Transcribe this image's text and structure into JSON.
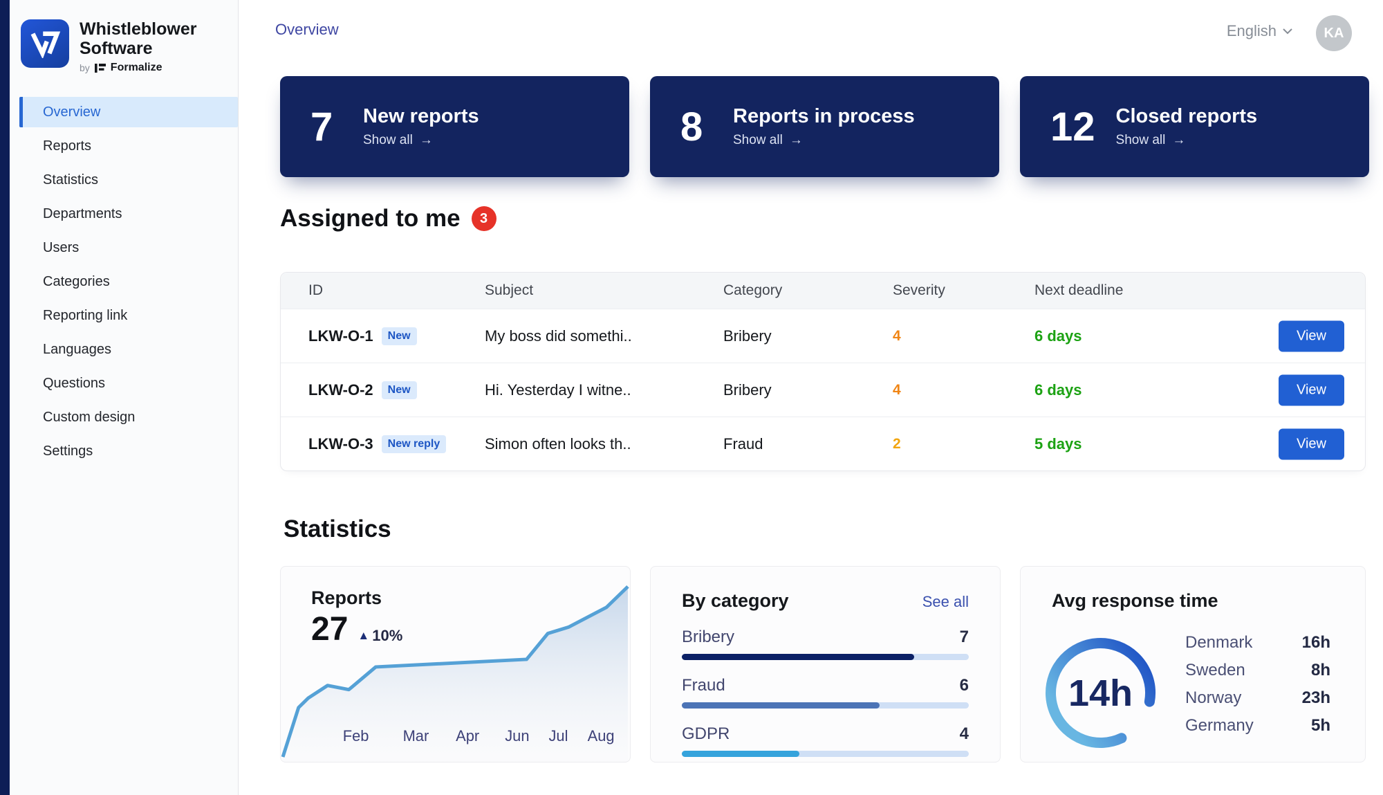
{
  "brand": {
    "title_line1": "Whistleblower",
    "title_line2": "Software",
    "byline": "by",
    "brand_name": "Formalize"
  },
  "sidebar": {
    "items": [
      {
        "label": "Overview",
        "active": true
      },
      {
        "label": "Reports",
        "active": false
      },
      {
        "label": "Statistics",
        "active": false
      },
      {
        "label": "Departments",
        "active": false
      },
      {
        "label": "Users",
        "active": false
      },
      {
        "label": "Categories",
        "active": false
      },
      {
        "label": "Reporting link",
        "active": false
      },
      {
        "label": "Languages",
        "active": false
      },
      {
        "label": "Questions",
        "active": false
      },
      {
        "label": "Custom design",
        "active": false
      },
      {
        "label": "Settings",
        "active": false
      }
    ]
  },
  "header": {
    "breadcrumb": "Overview",
    "language": "English",
    "avatar_initials": "KA"
  },
  "summary_cards": [
    {
      "count": "7",
      "label": "New reports",
      "link_label": "Show all"
    },
    {
      "count": "8",
      "label": "Reports in process",
      "link_label": "Show all"
    },
    {
      "count": "12",
      "label": "Closed reports",
      "link_label": "Show all"
    }
  ],
  "assigned": {
    "title": "Assigned to me",
    "badge_count": "3",
    "columns": [
      "ID",
      "Subject",
      "Category",
      "Severity",
      "Next deadline"
    ],
    "action_label": "View",
    "deadline_color": "#1ca213",
    "rows": [
      {
        "id": "LKW-O-1",
        "tag": "New",
        "subject": "My boss did somethi..",
        "category": "Bribery",
        "severity": "4",
        "severity_color": "#f08514",
        "deadline": "6 days"
      },
      {
        "id": "LKW-O-2",
        "tag": "New",
        "subject": "Hi. Yesterday I witne..",
        "category": "Bribery",
        "severity": "4",
        "severity_color": "#f08514",
        "deadline": "6 days"
      },
      {
        "id": "LKW-O-3",
        "tag": "New reply",
        "subject": "Simon often looks th..",
        "category": "Fraud",
        "severity": "2",
        "severity_color": "#f2a50f",
        "deadline": "5 days"
      }
    ]
  },
  "statistics": {
    "heading": "Statistics"
  },
  "chart_data": [
    {
      "type": "area",
      "title": "Reports",
      "total": "27",
      "delta": "10%",
      "x_labels": [
        "Feb",
        "Mar",
        "Apr",
        "Jun",
        "Jul",
        "Aug"
      ],
      "x_label_pos_pct": [
        21.5,
        38.7,
        53.5,
        67.7,
        79.5,
        91.7
      ],
      "points_pct": [
        [
          0.6,
          97.5
        ],
        [
          5.1,
          72.2
        ],
        [
          7.9,
          67.3
        ],
        [
          13.4,
          60.9
        ],
        [
          19.5,
          63.0
        ],
        [
          27.2,
          51.4
        ],
        [
          70.4,
          47.5
        ],
        [
          76.5,
          34.2
        ],
        [
          82.4,
          31.0
        ],
        [
          93.3,
          20.8
        ],
        [
          99.4,
          10.2
        ]
      ],
      "line_color": "#55a1d6",
      "label_color": "#3d4178"
    },
    {
      "type": "bar",
      "title": "By category",
      "link_label": "See all",
      "categories": [
        "Bribery",
        "Fraud",
        "GDPR"
      ],
      "values": [
        7,
        6,
        4
      ],
      "fill_pct": [
        81,
        69,
        41
      ],
      "bar_colors": [
        "#0c2166",
        "#4c74b6",
        "#35a3dc"
      ],
      "track_color": "#cfdff5"
    },
    {
      "type": "gauge",
      "title": "Avg response time",
      "value": "14h",
      "visible_deg": 305,
      "arc_colors": [
        "#1f53c5",
        "#68b6e2"
      ],
      "items": [
        {
          "label": "Denmark",
          "value": "16h"
        },
        {
          "label": "Sweden",
          "value": "8h"
        },
        {
          "label": "Norway",
          "value": "23h"
        },
        {
          "label": "Germany",
          "value": "5h"
        }
      ]
    }
  ]
}
